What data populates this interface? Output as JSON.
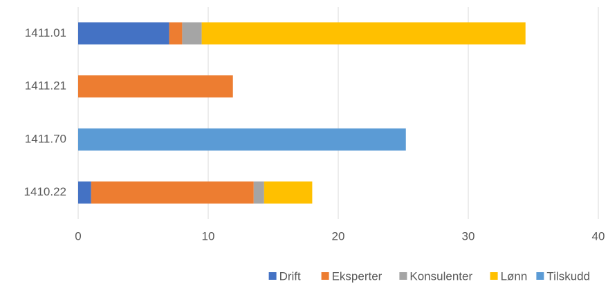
{
  "chart_data": {
    "type": "stacked-barh",
    "categories": [
      "1411.01",
      "1411.21",
      "1411.70",
      "1410.22"
    ],
    "series": [
      {
        "name": "Drift",
        "color": "#4472c4",
        "values": [
          7.0,
          null,
          null,
          1.0
        ]
      },
      {
        "name": "Eksperter",
        "color": "#ed7d31",
        "values": [
          1.0,
          11.9,
          null,
          12.5
        ]
      },
      {
        "name": "Konsulenter",
        "color": "#a5a5a5",
        "values": [
          1.5,
          null,
          null,
          0.8
        ]
      },
      {
        "name": "Lønn",
        "color": "#ffc000",
        "values": [
          24.9,
          null,
          null,
          3.7
        ]
      },
      {
        "name": "Tilskudd",
        "color": "#5b9bd5",
        "values": [
          null,
          null,
          25.2,
          null
        ]
      }
    ],
    "xlim": [
      0,
      40
    ],
    "xticks": [
      0,
      10,
      20,
      30,
      40
    ],
    "grid": true,
    "legend": "bottom"
  }
}
